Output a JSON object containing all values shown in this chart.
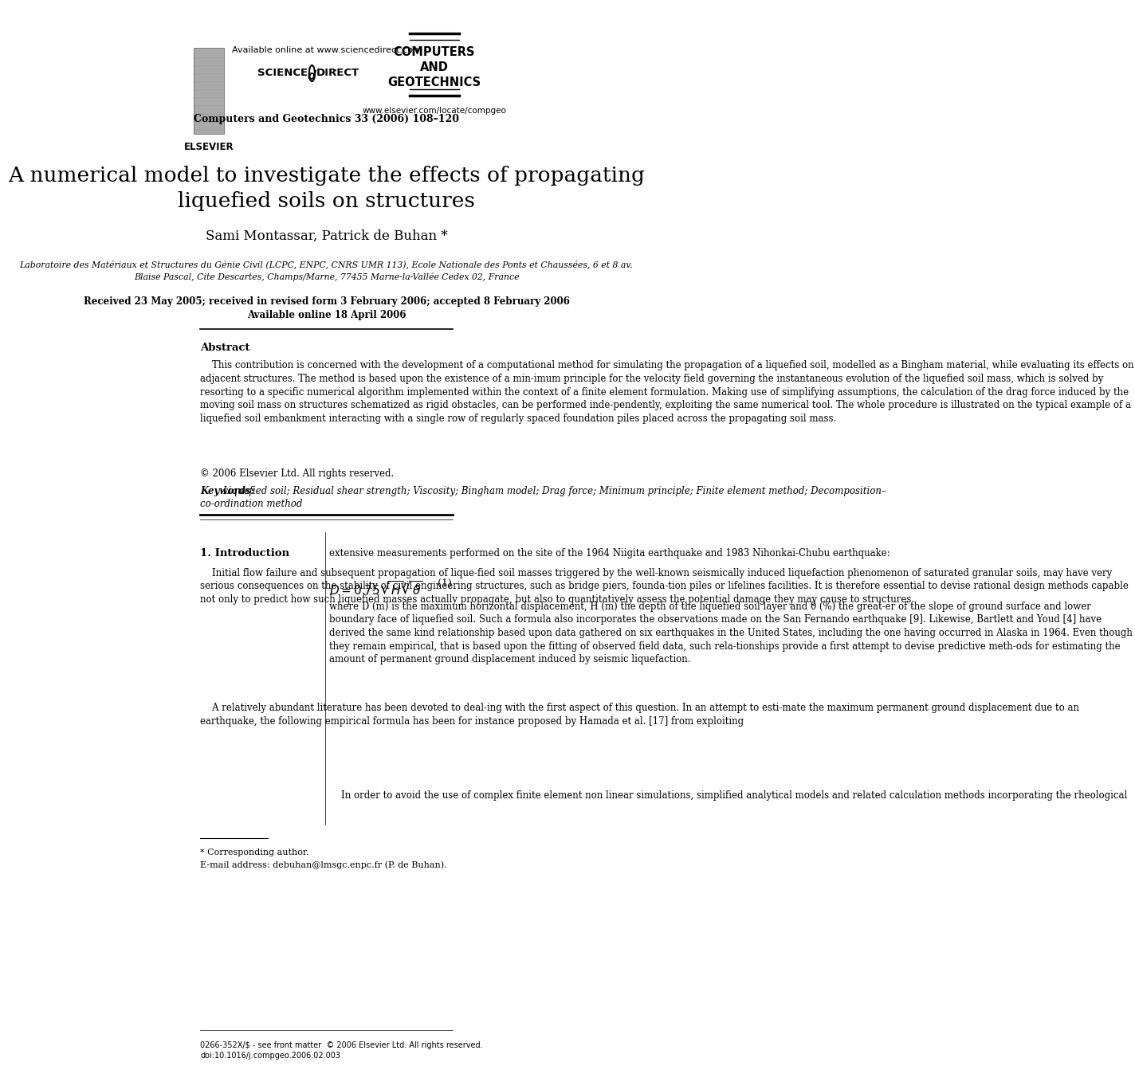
{
  "bg_color": "#ffffff",
  "title_line1": "A numerical model to investigate the effects of propagating",
  "title_line2": "liquefied soils on structures",
  "authors": "Sami Montassar, Patrick de Buhan *",
  "affiliation_line1": "Laboratoire des Matériaux et Structures du Génie Civil (LCPC, ENPC, CNRS UMR 113), Ecole Nationale des Ponts et Chaussées, 6 et 8 av.",
  "affiliation_line2": "Blaise Pascal, Cite Descartes, Champs/Marne, 77455 Marne-la-Vallée Cedex 02, France",
  "received": "Received 23 May 2005; received in revised form 3 February 2006; accepted 8 February 2006",
  "available": "Available online 18 April 2006",
  "header_center_line1": "Available online at www.sciencedirect.com",
  "header_journal": "Computers and Geotechnics 33 (2006) 108–120",
  "journal_name_line1": "COMPUTERS",
  "journal_name_line2": "AND",
  "journal_name_line3": "GEOTECHNICS",
  "website": "www.elsevier.com/locate/compgeo",
  "abstract_title": "Abstract",
  "abstract_text": "    This contribution is concerned with the development of a computational method for simulating the propagation of a liquefied soil, modelled as a Bingham material, while evaluating its effects on adjacent structures. The method is based upon the existence of a min-imum principle for the velocity field governing the instantaneous evolution of the liquefied soil mass, which is solved by resorting to a specific numerical algorithm implemented within the context of a finite element formulation. Making use of simplifying assumptions, the calculation of the drag force induced by the moving soil mass on structures schematized as rigid obstacles, can be performed inde-pendently, exploiting the same numerical tool. The whole procedure is illustrated on the typical example of a liquefied soil embankment interacting with a single row of regularly spaced foundation piles placed across the propagating soil mass.",
  "copyright": "© 2006 Elsevier Ltd. All rights reserved.",
  "keywords_label": "Keywords: ",
  "keywords_text": "Liquefied soil; Residual shear strength; Viscosity; Bingham model; Drag force; Minimum principle; Finite element method; Decomposition–",
  "keywords_line2": "co-ordination method",
  "section1_title": "1. Introduction",
  "col1_para1": "    Initial flow failure and subsequent propagation of lique-fied soil masses triggered by the well-known seismically induced liquefaction phenomenon of saturated granular soils, may have very serious consequences on the stability of civil engineering structures, such as bridge piers, founda-tion piles or lifelines facilities. It is therefore essential to devise rational design methods capable not only to predict how such liquefied masses actually propagate, but also to quantitatively assess the potential damage they may cause to structures.",
  "col1_para2": "    A relatively abundant literature has been devoted to deal-ing with the first aspect of this question. In an attempt to esti-mate the maximum permanent ground displacement due to an earthquake, the following empirical formula has been for instance proposed by Hamada et al. [17] from exploiting",
  "col2_text1": "extensive measurements performed on the site of the 1964 Niigita earthquake and 1983 Nihonkai-Chubu earthquake:",
  "eq_number": "(1)",
  "col2_text2": "where D (m) is the maximum horizontal displacement, H (m) the depth of the liquefied soil layer and θ (%) the great-er of the slope of ground surface and lower boundary face of liquefied soil. Such a formula also incorporates the observations made on the San Fernando earthquake [9]. Likewise, Bartlett and Youd [4] have derived the same kind relationship based upon data gathered on six earthquakes in the United States, including the one having occurred in Alaska in 1964. Even though they remain empirical, that is based upon the fitting of observed field data, such rela-tionships provide a first attempt to devise predictive meth-ods for estimating the amount of permanent ground displacement induced by seismic liquefaction.",
  "col2_para3": "    In order to avoid the use of complex finite element non linear simulations, simplified analytical models and related calculation methods incorporating the rheological",
  "footnote_star": "* Corresponding author.",
  "footnote_email": "E-mail address: debuhan@lmsgc.enpc.fr (P. de Buhan).",
  "bottom_line1": "0266-352X/$ - see front matter  © 2006 Elsevier Ltd. All rights reserved.",
  "bottom_line2": "doi:10.1016/j.compgeo.2006.02.003"
}
